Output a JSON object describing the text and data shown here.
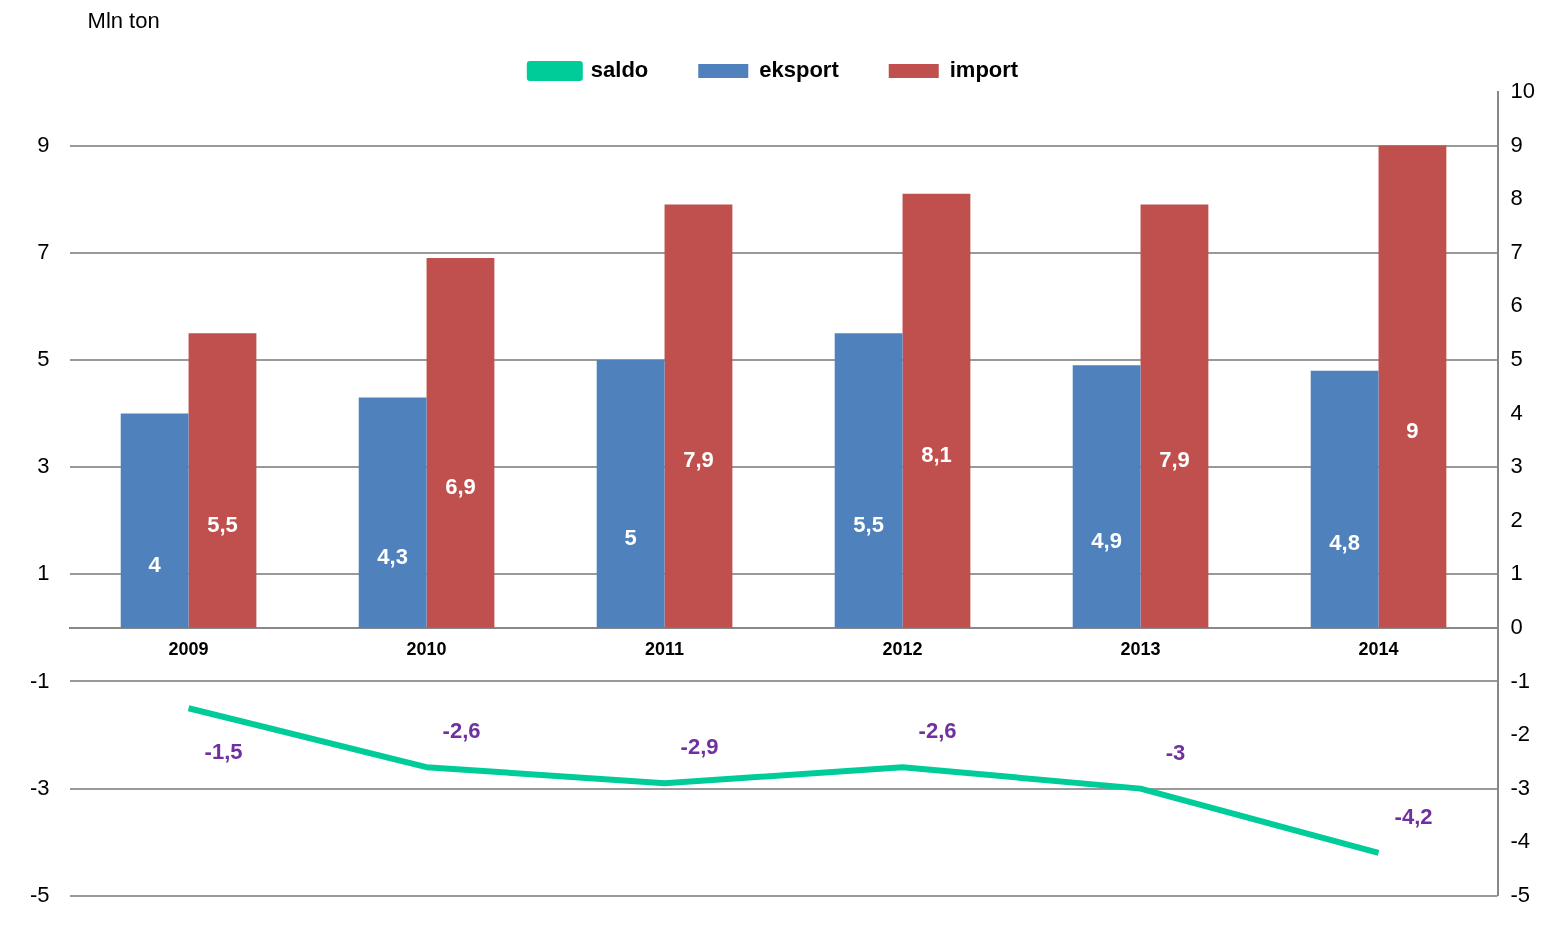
{
  "chart_data": {
    "type": "bar",
    "ylabel": "Mln ton",
    "categories": [
      "2009",
      "2010",
      "2011",
      "2012",
      "2013",
      "2014"
    ],
    "series": [
      {
        "name": "eksport",
        "color": "#4f81bd",
        "values": [
          4,
          4.3,
          5,
          5.5,
          4.9,
          4.8
        ],
        "value_labels": [
          "4",
          "4,3",
          "5",
          "5,5",
          "4,9",
          "4,8"
        ]
      },
      {
        "name": "import",
        "color": "#c0504d",
        "values": [
          5.5,
          6.9,
          7.9,
          8.1,
          7.9,
          9
        ],
        "value_labels": [
          "5,5",
          "6,9",
          "7,9",
          "8,1",
          "7,9",
          "9"
        ]
      },
      {
        "name": "saldo",
        "type": "line",
        "color": "#00cc99",
        "values": [
          -1.5,
          -2.6,
          -2.9,
          -2.6,
          -3,
          -4.2
        ],
        "value_labels": [
          "-1,5",
          "-2,6",
          "-2,9",
          "-2,6",
          "-3",
          "-4,2"
        ],
        "marker": "none"
      }
    ],
    "ylim": [
      -5,
      10
    ],
    "yticks": [
      -5,
      -3,
      -1,
      1,
      3,
      5,
      7,
      9
    ],
    "y2lim": [
      -5,
      10
    ],
    "y2ticks": [
      -5,
      -4,
      -3,
      -2,
      -1,
      0,
      1,
      2,
      3,
      4,
      5,
      6,
      7,
      8,
      9,
      10
    ],
    "grid": "y",
    "legend": "top"
  }
}
